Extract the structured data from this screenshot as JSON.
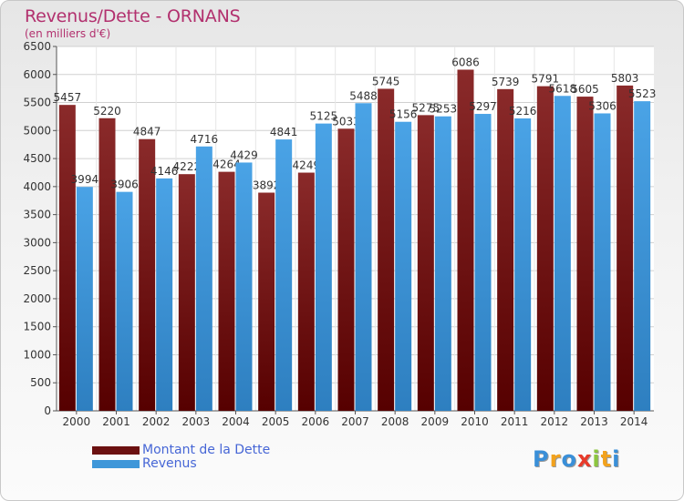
{
  "title": "Revenus/Dette - ORNANS",
  "subtitle": "(en milliers d'€)",
  "chart_data": {
    "type": "bar",
    "title": "Revenus/Dette - ORNANS",
    "subtitle": "(en milliers d'€)",
    "categories": [
      "2000",
      "2001",
      "2002",
      "2003",
      "2004",
      "2005",
      "2006",
      "2007",
      "2008",
      "2009",
      "2010",
      "2011",
      "2012",
      "2013",
      "2014"
    ],
    "series": [
      {
        "name": "Montant de la Dette",
        "color": "#6b1010",
        "values": [
          5457,
          5220,
          4847,
          4222,
          4264,
          3892,
          4249,
          5033,
          5745,
          5275,
          6086,
          5739,
          5791,
          5605,
          5803
        ],
        "labels": [
          "5457",
          "5220",
          "4847",
          "4222",
          "4264",
          "3892",
          "4249",
          "5033",
          "5745",
          "5275",
          "6086",
          "5739",
          "5791",
          "5605",
          "5803"
        ]
      },
      {
        "name": "Revenus",
        "color": "#3f97d9",
        "values": [
          3994,
          3906,
          4146,
          4716,
          4429,
          4841,
          5125,
          5488,
          5156,
          5253,
          5297,
          5216,
          5618,
          5306,
          5523
        ],
        "labels": [
          "3994",
          "3906",
          "4146",
          "4716",
          "4429",
          "4841",
          "5125",
          "5488",
          "5156",
          "5253",
          "5297",
          "5216",
          "5618",
          "5306",
          "5523"
        ]
      }
    ],
    "ylim": [
      0,
      6500
    ],
    "yticks": [
      0,
      500,
      1000,
      1500,
      2000,
      2500,
      3000,
      3500,
      4000,
      4500,
      5000,
      5500,
      6000,
      6500
    ],
    "grid": true,
    "legend_position": "bottom-left"
  },
  "legend": [
    {
      "label": "Montant de la Dette",
      "color": "#6b1010"
    },
    {
      "label": "Revenus",
      "color": "#3f97d9"
    }
  ],
  "logo": {
    "letters": [
      "P",
      "r",
      "o",
      "x",
      "i",
      "t",
      "i"
    ],
    "colors": [
      "#3a8fd8",
      "#f2a21d",
      "#3a8fd8",
      "#e83a2a",
      "#8cc63f",
      "#f2a21d",
      "#3a8fd8"
    ]
  }
}
